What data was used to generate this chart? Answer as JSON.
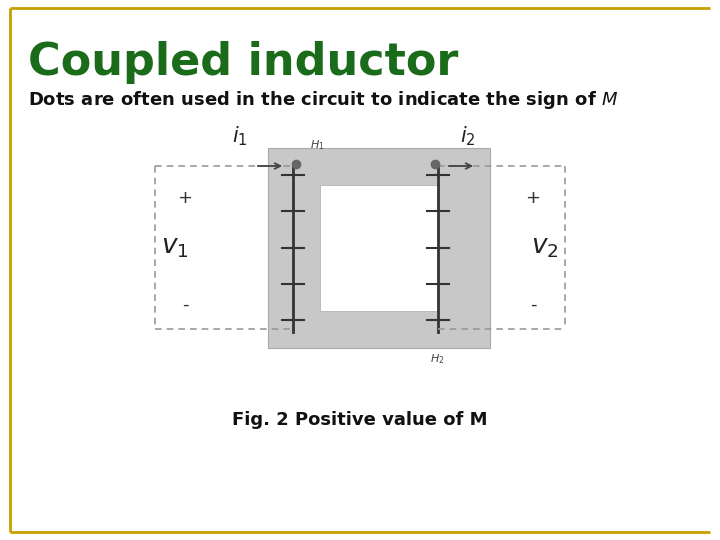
{
  "title": "Coupled inductor",
  "subtitle": "Dots are often used in the circuit to indicate the sign of  $M$",
  "fig_caption": "Fig. 2 Positive value of M",
  "title_color": "#1a6b1a",
  "title_fontsize": 32,
  "subtitle_fontsize": 13,
  "caption_fontsize": 13,
  "bg_color": "#ffffff",
  "core_color": "#c8c8c8",
  "border_color": "#c8a000",
  "dot_color": "#666666",
  "coil_line_color": "#333333",
  "wire_color": "#999999",
  "arrow_color": "#444444",
  "n_coil_turns": 5
}
